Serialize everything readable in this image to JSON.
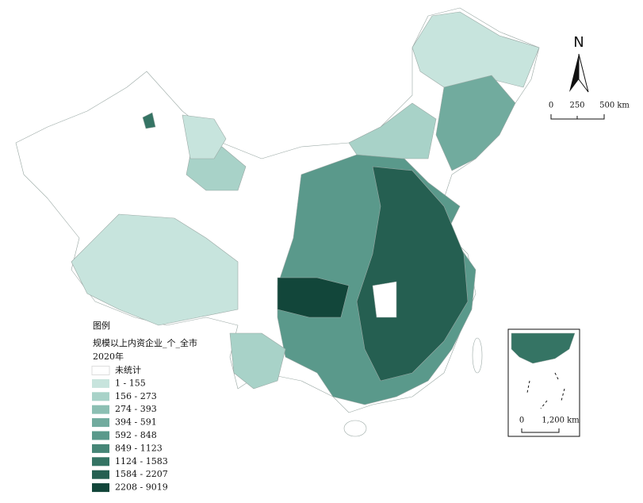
{
  "north_arrow": "N",
  "scale_bar": {
    "labels": [
      "0",
      "250",
      "500 km"
    ]
  },
  "inset_scale_bar": {
    "labels": [
      "0",
      "1,200 km"
    ]
  },
  "legend": {
    "title": "图例",
    "subtitle": "规模以上内资企业_个_全市",
    "year": "2020年",
    "items": [
      {
        "label": "未统计",
        "color": "#ffffff"
      },
      {
        "label": "1 - 155",
        "color": "#c7e4dd"
      },
      {
        "label": "156 - 273",
        "color": "#a8d2c8"
      },
      {
        "label": "274 - 393",
        "color": "#8cbfb3"
      },
      {
        "label": "394 - 591",
        "color": "#71ab9e"
      },
      {
        "label": "592 - 848",
        "color": "#5a998b"
      },
      {
        "label": "849 - 1123",
        "color": "#468677"
      },
      {
        "label": "1124 - 1583",
        "color": "#357464"
      },
      {
        "label": "1584 - 2207",
        "color": "#255f51"
      },
      {
        "label": "2208 - 9019",
        "color": "#12463a"
      }
    ]
  }
}
